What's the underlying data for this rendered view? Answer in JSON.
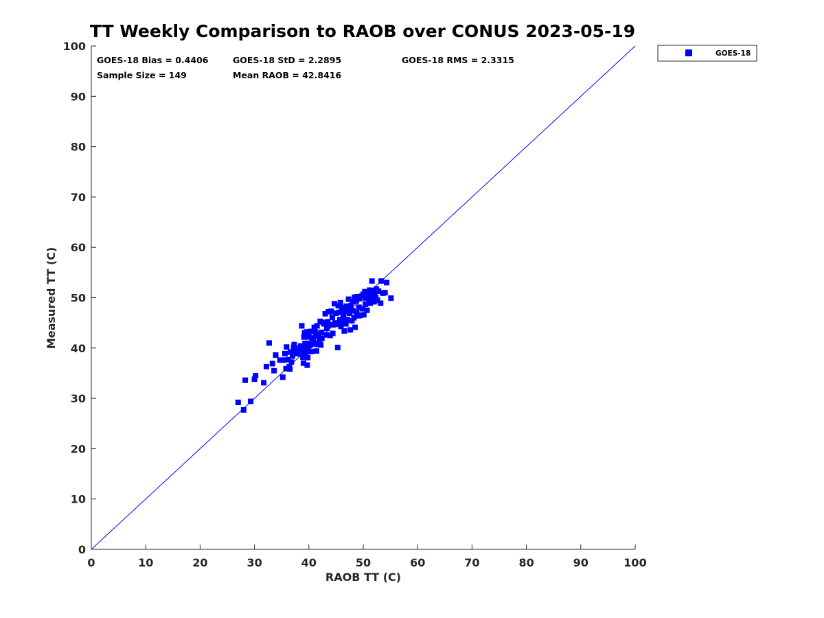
{
  "chart_data": {
    "type": "scatter",
    "title": "TT Weekly Comparison to RAOB over CONUS 2023-05-19",
    "xlabel": "RAOB TT (C)",
    "ylabel": "Measured TT (C)",
    "xlim": [
      0,
      100
    ],
    "ylim": [
      0,
      100
    ],
    "xticks": [
      "0",
      "10",
      "20",
      "30",
      "40",
      "50",
      "60",
      "70",
      "80",
      "90",
      "100"
    ],
    "yticks": [
      "0",
      "10",
      "20",
      "30",
      "40",
      "50",
      "60",
      "70",
      "80",
      "90",
      "100"
    ],
    "grid": false,
    "reference_line": {
      "from": [
        0,
        0
      ],
      "to": [
        100,
        100
      ],
      "color": "#0000ff"
    },
    "legend": {
      "position": "outside-top-right",
      "entries": [
        "GOES-18"
      ]
    },
    "stats": [
      "GOES-18 Bias = 0.4406",
      "GOES-18 StD = 2.2895",
      "GOES-18 RMS = 2.3315",
      "Sample Size = 149",
      "Mean RAOB = 42.8416"
    ],
    "series": [
      {
        "name": "GOES-18",
        "color": "#0000ff",
        "marker": "square",
        "points": [
          [
            27.0,
            29.2
          ],
          [
            28.0,
            27.7
          ],
          [
            28.3,
            33.6
          ],
          [
            29.3,
            29.4
          ],
          [
            30.0,
            33.8
          ],
          [
            30.2,
            34.5
          ],
          [
            31.7,
            33.1
          ],
          [
            32.2,
            36.3
          ],
          [
            32.7,
            41.0
          ],
          [
            33.3,
            36.9
          ],
          [
            33.6,
            35.5
          ],
          [
            33.9,
            38.6
          ],
          [
            34.7,
            37.6
          ],
          [
            35.2,
            34.2
          ],
          [
            35.4,
            37.6
          ],
          [
            35.6,
            38.9
          ],
          [
            35.8,
            35.9
          ],
          [
            35.9,
            40.2
          ],
          [
            36.2,
            37.7
          ],
          [
            36.4,
            36.3
          ],
          [
            36.5,
            35.8
          ],
          [
            36.6,
            39.2
          ],
          [
            36.8,
            37.2
          ],
          [
            37.0,
            38.4
          ],
          [
            37.2,
            40.1
          ],
          [
            37.3,
            40.7
          ],
          [
            37.5,
            38.9
          ],
          [
            37.6,
            39.8
          ],
          [
            37.8,
            39.3
          ],
          [
            38.0,
            40.0
          ],
          [
            38.2,
            38.9
          ],
          [
            38.3,
            39.7
          ],
          [
            38.5,
            40.4
          ],
          [
            38.7,
            44.4
          ],
          [
            38.9,
            38.2
          ],
          [
            39.0,
            37.0
          ],
          [
            39.0,
            39.3
          ],
          [
            39.1,
            42.2
          ],
          [
            39.2,
            43.0
          ],
          [
            39.3,
            40.9
          ],
          [
            39.3,
            42.7
          ],
          [
            39.4,
            38.8
          ],
          [
            39.5,
            40.0
          ],
          [
            39.6,
            43.2
          ],
          [
            39.7,
            36.6
          ],
          [
            39.8,
            38.1
          ],
          [
            39.9,
            39.6
          ],
          [
            40.0,
            40.9
          ],
          [
            40.0,
            42.2
          ],
          [
            40.2,
            40.5
          ],
          [
            40.3,
            43.3
          ],
          [
            40.4,
            39.3
          ],
          [
            40.6,
            41.5
          ],
          [
            40.7,
            42.0
          ],
          [
            40.9,
            40.8
          ],
          [
            41.0,
            44.1
          ],
          [
            41.1,
            41.0
          ],
          [
            41.2,
            43.2
          ],
          [
            41.3,
            42.7
          ],
          [
            41.4,
            39.4
          ],
          [
            41.5,
            44.4
          ],
          [
            41.7,
            40.7
          ],
          [
            41.8,
            42.3
          ],
          [
            42.0,
            41.5
          ],
          [
            42.1,
            45.3
          ],
          [
            42.2,
            40.6
          ],
          [
            42.3,
            43.1
          ],
          [
            42.4,
            41.9
          ],
          [
            42.6,
            45.1
          ],
          [
            42.8,
            44.8
          ],
          [
            43.0,
            46.8
          ],
          [
            43.2,
            42.6
          ],
          [
            43.3,
            43.9
          ],
          [
            43.5,
            45.2
          ],
          [
            43.6,
            47.2
          ],
          [
            43.8,
            44.6
          ],
          [
            43.9,
            42.5
          ],
          [
            44.1,
            47.3
          ],
          [
            44.3,
            46.1
          ],
          [
            44.4,
            42.9
          ],
          [
            44.5,
            44.6
          ],
          [
            44.7,
            48.8
          ],
          [
            44.8,
            45.0
          ],
          [
            45.0,
            46.9
          ],
          [
            45.2,
            44.7
          ],
          [
            45.3,
            40.1
          ],
          [
            45.4,
            48.4
          ],
          [
            45.6,
            47.1
          ],
          [
            45.7,
            45.6
          ],
          [
            45.8,
            49.0
          ],
          [
            45.9,
            44.3
          ],
          [
            46.1,
            48.0
          ],
          [
            46.2,
            45.2
          ],
          [
            46.4,
            46.6
          ],
          [
            46.5,
            43.4
          ],
          [
            46.6,
            47.3
          ],
          [
            46.8,
            44.8
          ],
          [
            46.9,
            48.3
          ],
          [
            47.1,
            45.6
          ],
          [
            47.2,
            47.7
          ],
          [
            47.3,
            49.7
          ],
          [
            47.5,
            46.9
          ],
          [
            47.6,
            43.6
          ],
          [
            47.7,
            48.4
          ],
          [
            47.9,
            45.4
          ],
          [
            48.0,
            49.2
          ],
          [
            48.1,
            47.4
          ],
          [
            48.3,
            46.0
          ],
          [
            48.4,
            50.1
          ],
          [
            48.5,
            44.1
          ],
          [
            48.7,
            49.3
          ],
          [
            48.8,
            47.0
          ],
          [
            48.9,
            50.2
          ],
          [
            49.1,
            46.4
          ],
          [
            49.2,
            48.1
          ],
          [
            49.4,
            49.8
          ],
          [
            49.5,
            46.5
          ],
          [
            49.7,
            50.3
          ],
          [
            49.9,
            47.8
          ],
          [
            50.0,
            50.7
          ],
          [
            50.1,
            46.6
          ],
          [
            50.3,
            51.2
          ],
          [
            50.4,
            48.7
          ],
          [
            50.5,
            49.9
          ],
          [
            50.7,
            47.5
          ],
          [
            50.8,
            50.3
          ],
          [
            50.9,
            51.0
          ],
          [
            51.1,
            49.6
          ],
          [
            51.2,
            51.5
          ],
          [
            51.3,
            48.9
          ],
          [
            51.5,
            50.6
          ],
          [
            51.6,
            53.3
          ],
          [
            51.7,
            49.8
          ],
          [
            51.9,
            51.4
          ],
          [
            52.0,
            49.2
          ],
          [
            52.1,
            51.0
          ],
          [
            52.3,
            50.0
          ],
          [
            52.4,
            51.7
          ],
          [
            52.6,
            49.5
          ],
          [
            52.8,
            51.3
          ],
          [
            53.2,
            48.9
          ],
          [
            53.3,
            53.3
          ],
          [
            53.6,
            50.9
          ],
          [
            54.0,
            51.0
          ],
          [
            54.3,
            53.0
          ],
          [
            55.1,
            49.9
          ],
          [
            46.3,
            46.0
          ],
          [
            38.4,
            38.8
          ],
          [
            40.8,
            41.9
          ]
        ]
      }
    ]
  }
}
